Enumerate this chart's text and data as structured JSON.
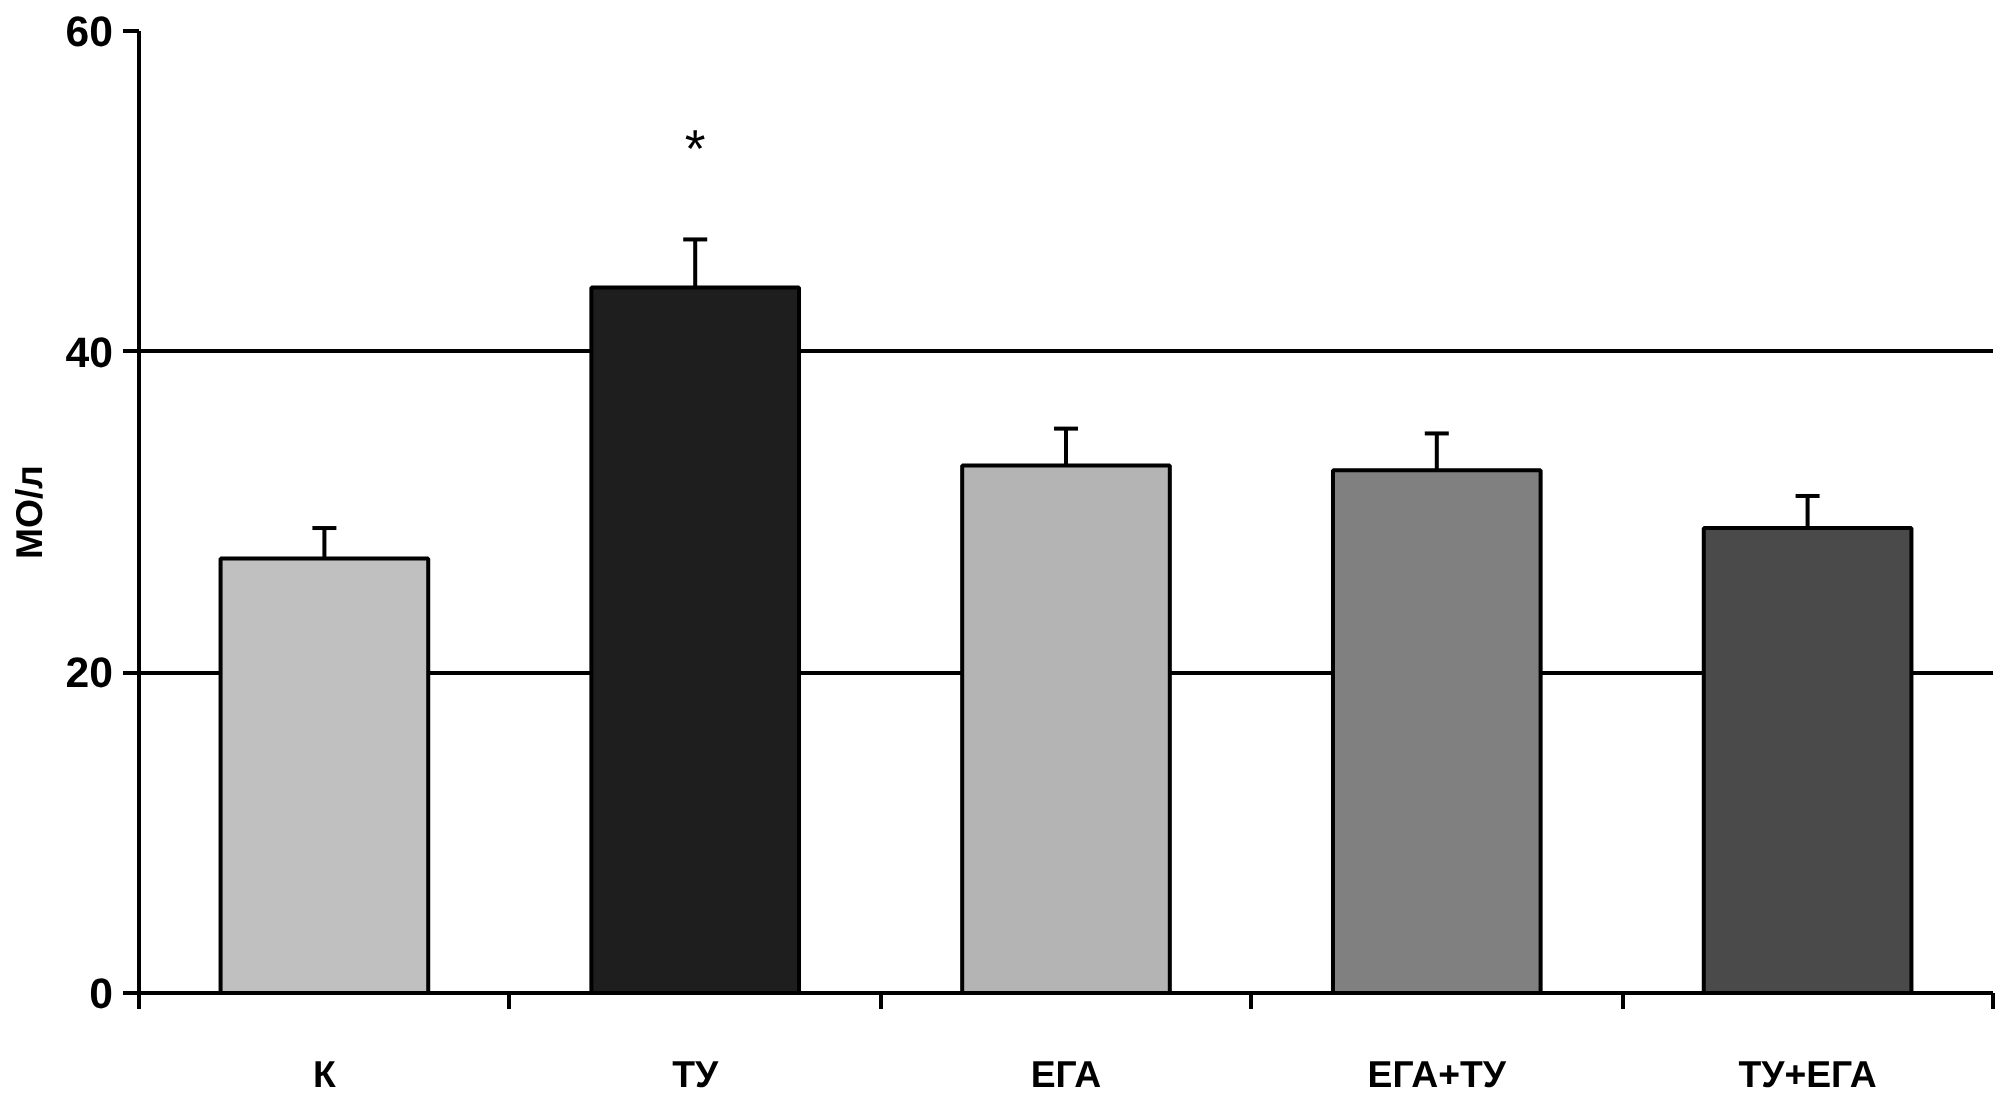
{
  "chart_data": {
    "type": "bar",
    "ylabel": "МО/л",
    "categories": [
      "К",
      "ТУ",
      "ЕГА",
      "ЕГА+ТУ",
      "ТУ+ЕГА"
    ],
    "values": [
      27.1,
      44.0,
      32.9,
      32.6,
      29.0
    ],
    "errors": [
      1.9,
      3.0,
      2.3,
      2.3,
      2.0
    ],
    "colors": [
      "#c0c0c0",
      "#1e1e1e",
      "#b4b4b4",
      "#808080",
      "#4a4a4a"
    ],
    "ylim": [
      0,
      60
    ],
    "yticks": [
      0,
      20,
      40,
      60
    ],
    "grid": "y",
    "annotations": [
      "*"
    ]
  }
}
